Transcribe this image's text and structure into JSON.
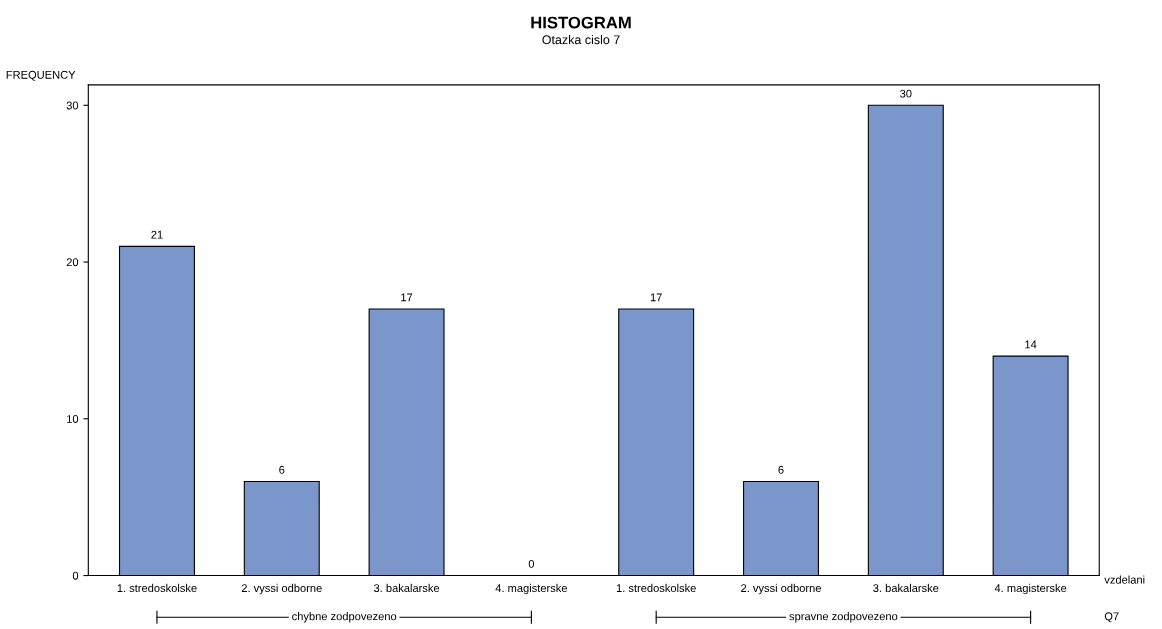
{
  "chart_data": {
    "type": "bar",
    "title": "HISTOGRAM",
    "subtitle": "Otazka cislo 7",
    "ylabel": "FREQUENCY",
    "xlabel": "vzdelani",
    "categories": [
      "1. stredoskolske",
      "2. vyssi odborne",
      "3. bakalarske",
      "4. magisterske",
      "1. stredoskolske",
      "2. vyssi odborne",
      "3. bakalarske",
      "4. magisterske"
    ],
    "values": [
      21,
      6,
      17,
      0,
      17,
      6,
      30,
      14
    ],
    "color": "#7b96cb",
    "ylim": [
      0,
      31.3
    ],
    "yticks": [
      0,
      10,
      20,
      30
    ],
    "data_labels": true,
    "grid": false,
    "legend": false,
    "annotations": [
      "chybne zodpovezeno",
      "spravne zodpovezeno",
      "Q7"
    ]
  }
}
